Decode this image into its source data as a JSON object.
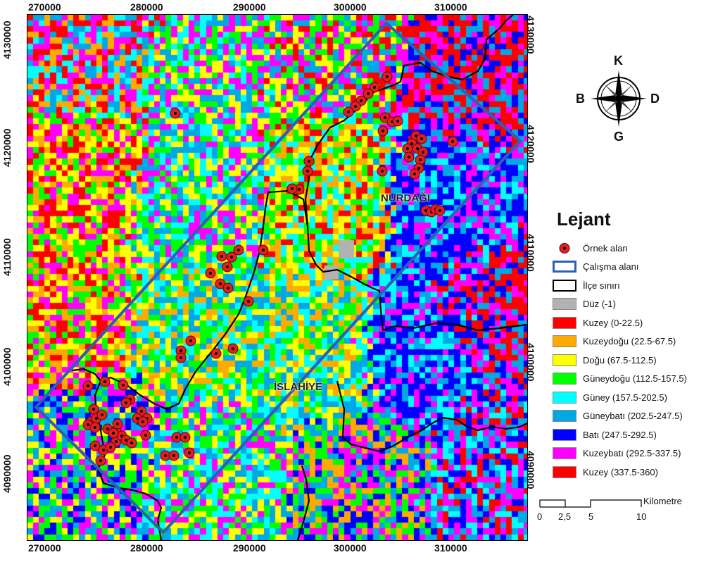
{
  "map": {
    "x_ticks": [
      "270000",
      "280000",
      "290000",
      "300000",
      "310000"
    ],
    "y_ticks": [
      "4130000",
      "4120000",
      "4110000",
      "4100000",
      "4090000"
    ],
    "places": [
      {
        "name": "NURDAĞI"
      },
      {
        "name": "İSLAHİYE"
      }
    ],
    "sample_point_count": 78
  },
  "compass": {
    "n": "K",
    "s": "G",
    "w": "B",
    "e": "D"
  },
  "legend": {
    "title": "Lejant",
    "symbols": [
      {
        "label": "Örnek alan",
        "kind": "point"
      },
      {
        "label": "Çalışma alanı",
        "kind": "study-area"
      },
      {
        "label": "İlçe sınırı",
        "kind": "district-boundary"
      }
    ],
    "classes": [
      {
        "label": "Düz (-1)",
        "color": "#b2b2b2"
      },
      {
        "label": "Kuzey (0-22.5)",
        "color": "#ff0000"
      },
      {
        "label": "Kuzeydoğu (22.5-67.5)",
        "color": "#ffaa00"
      },
      {
        "label": "Doğu (67.5-112.5)",
        "color": "#ffff00"
      },
      {
        "label": "Güneydoğu (112.5-157.5)",
        "color": "#00ff00"
      },
      {
        "label": "Güney (157.5-202.5)",
        "color": "#00ffff"
      },
      {
        "label": "Güneybatı (202.5-247.5)",
        "color": "#00a9e6"
      },
      {
        "label": "Batı (247.5-292.5)",
        "color": "#0000ff"
      },
      {
        "label": "Kuzeybatı (292.5-337.5)",
        "color": "#ff00ff"
      },
      {
        "label": "Kuzey (337.5-360)",
        "color": "#ff0000"
      }
    ],
    "study_area_color": "#2e5fb8",
    "sample_point_color": "#e02020"
  },
  "scalebar": {
    "unit": "Kilometre",
    "labels": [
      "0",
      "2,5",
      "5",
      "10"
    ]
  }
}
